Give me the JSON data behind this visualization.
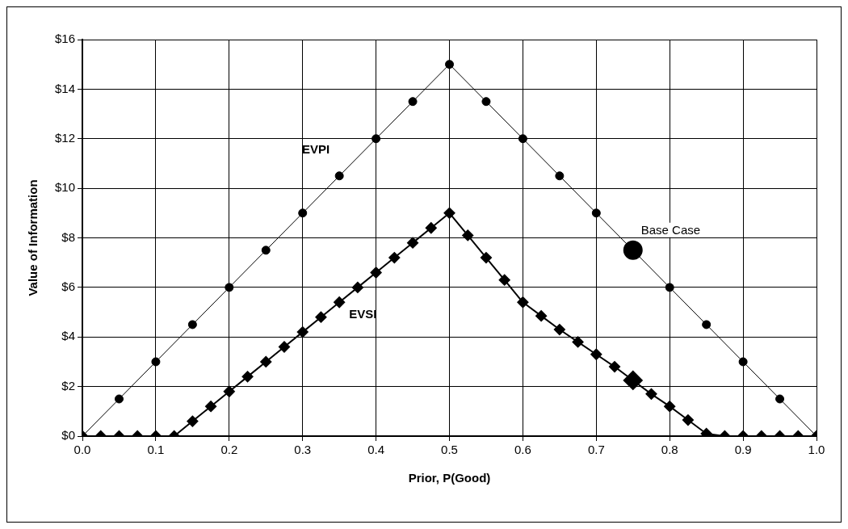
{
  "chart_data": {
    "type": "line",
    "xlabel": "Prior, P(Good)",
    "ylabel": "Value of Information",
    "xlim": [
      0,
      1
    ],
    "xticks": [
      {
        "value": 0,
        "label": "0.0"
      },
      {
        "value": 0.1,
        "label": "0.1"
      },
      {
        "value": 0.2,
        "label": "0.2"
      },
      {
        "value": 0.3,
        "label": "0.3"
      },
      {
        "value": 0.4,
        "label": "0.4"
      },
      {
        "value": 0.5,
        "label": "0.5"
      },
      {
        "value": 0.6,
        "label": "0.6"
      },
      {
        "value": 0.7,
        "label": "0.7"
      },
      {
        "value": 0.8,
        "label": "0.8"
      },
      {
        "value": 0.9,
        "label": "0.9"
      },
      {
        "value": 1,
        "label": "1.0"
      }
    ],
    "ylim": [
      0,
      16
    ],
    "yticks": [
      {
        "value": 0,
        "label": "$0"
      },
      {
        "value": 2,
        "label": "$2"
      },
      {
        "value": 4,
        "label": "$4"
      },
      {
        "value": 6,
        "label": "$6"
      },
      {
        "value": 8,
        "label": "$8"
      },
      {
        "value": 10,
        "label": "$10"
      },
      {
        "value": 12,
        "label": "$12"
      },
      {
        "value": 14,
        "label": "$14"
      },
      {
        "value": 16,
        "label": "$16"
      }
    ],
    "grid": true,
    "legend": false,
    "series": [
      {
        "name": "EVPI",
        "color": "#000000",
        "marker": "circle",
        "x": [
          0,
          0.05,
          0.1,
          0.15,
          0.2,
          0.25,
          0.3,
          0.35,
          0.4,
          0.45,
          0.5,
          0.55,
          0.6,
          0.65,
          0.7,
          0.75,
          0.8,
          0.85,
          0.9,
          0.95,
          1
        ],
        "values": [
          0,
          1.5,
          3,
          4.5,
          6,
          7.5,
          9,
          10.5,
          12,
          13.5,
          15,
          13.5,
          12,
          10.5,
          9,
          7.5,
          6,
          4.5,
          3,
          1.5,
          0
        ]
      },
      {
        "name": "EVSI",
        "color": "#000000",
        "marker": "diamond",
        "x": [
          0,
          0.025,
          0.05,
          0.075,
          0.1,
          0.125,
          0.15,
          0.175,
          0.2,
          0.225,
          0.25,
          0.275,
          0.3,
          0.325,
          0.35,
          0.375,
          0.4,
          0.425,
          0.45,
          0.475,
          0.5,
          0.525,
          0.55,
          0.575,
          0.6,
          0.625,
          0.65,
          0.675,
          0.7,
          0.725,
          0.75,
          0.775,
          0.8,
          0.825,
          0.85,
          0.875,
          0.9,
          0.925,
          0.95,
          0.975,
          1
        ],
        "values": [
          0,
          0,
          0,
          0,
          0,
          0,
          0.6,
          1.2,
          1.8,
          2.4,
          3,
          3.6,
          4.2,
          4.8,
          5.4,
          6,
          6.6,
          7.2,
          7.8,
          8.4,
          9,
          8.1,
          7.2,
          6.3,
          5.4,
          4.85,
          4.3,
          3.8,
          3.3,
          2.8,
          2.25,
          1.7,
          1.2,
          0.65,
          0.1,
          0,
          0,
          0,
          0,
          0,
          0
        ]
      },
      {
        "type": "scatter",
        "color": "#000000",
        "marker": "circle",
        "x": [
          0.75
        ],
        "values": [
          7.5
        ]
      },
      {
        "type": "scatter",
        "color": "#000000",
        "marker": "diamond",
        "x": [
          0.75
        ],
        "values": [
          2.25
        ]
      }
    ],
    "annotations": [
      {
        "text": "Base Case",
        "x": 0.75,
        "y": 7.5
      }
    ]
  }
}
